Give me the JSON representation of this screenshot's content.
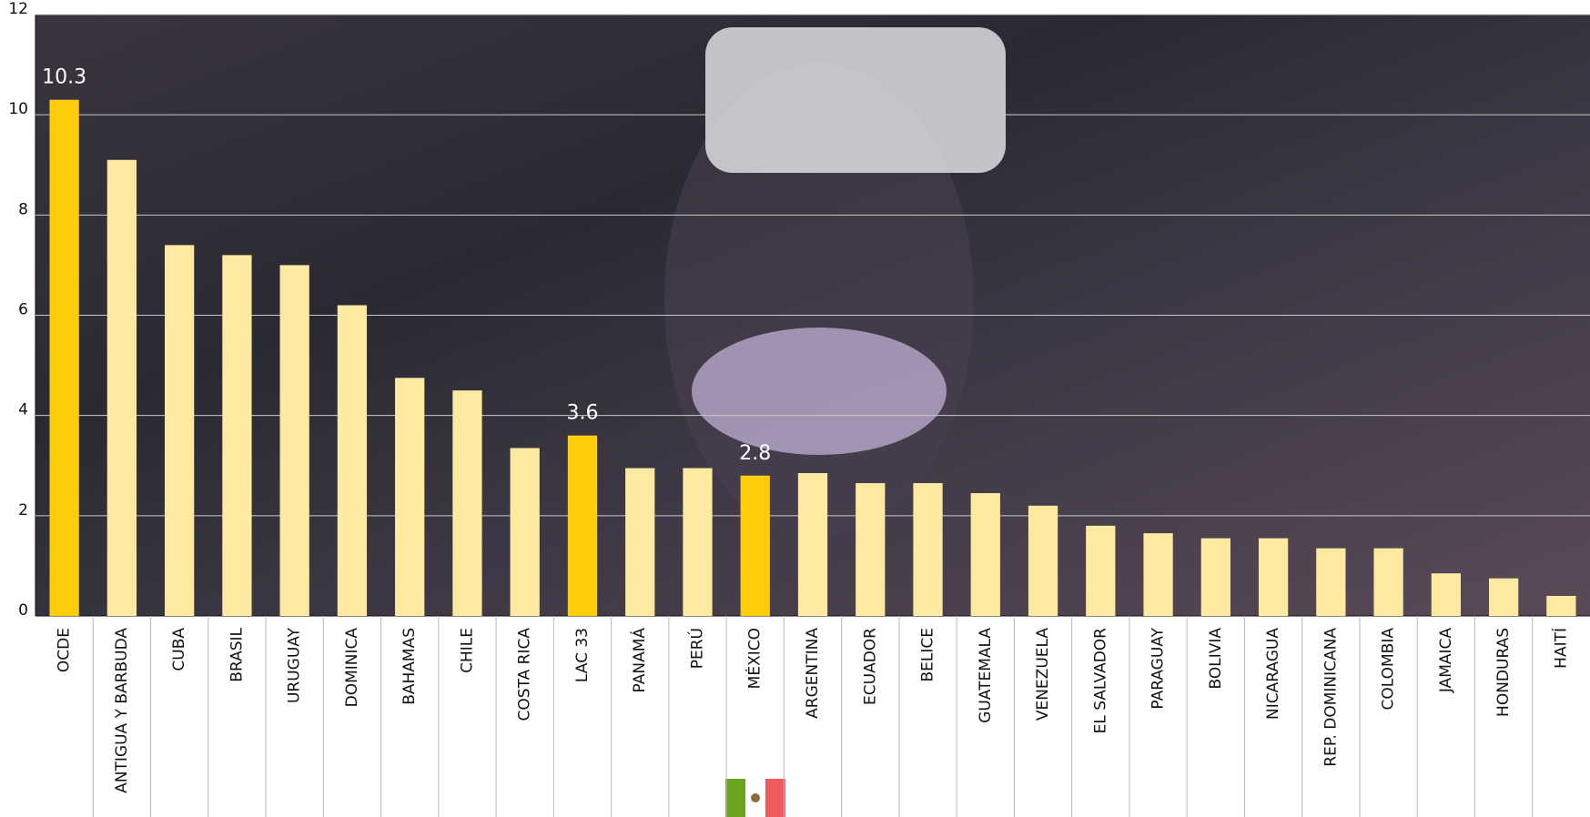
{
  "chart_data": {
    "type": "bar",
    "categories": [
      "OCDE",
      "ANTIGUA Y BARBUDA",
      "CUBA",
      "BRASIL",
      "URUGUAY",
      "DOMINICA",
      "BAHAMAS",
      "CHILE",
      "COSTA RICA",
      "LAC 33",
      "PANAMÁ",
      "PERÚ",
      "MÉXICO",
      "ARGENTINA",
      "ECUADOR",
      "BELICE",
      "GUATEMALA",
      "VENEZUELA",
      "EL SALVADOR",
      "PARAGUAY",
      "BOLIVIA",
      "NICARAGUA",
      "REP. DOMINICANA",
      "COLOMBIA",
      "JAMAICA",
      "HONDURAS",
      "HAITÍ"
    ],
    "values": [
      10.3,
      9.1,
      7.4,
      7.2,
      7.0,
      6.2,
      4.75,
      4.5,
      3.35,
      3.6,
      2.95,
      2.95,
      2.8,
      2.85,
      2.65,
      2.65,
      2.45,
      2.2,
      1.8,
      1.65,
      1.55,
      1.55,
      1.35,
      1.35,
      0.85,
      0.75,
      0.4
    ],
    "colors": [
      "#ffcc0a",
      "#fde9a0",
      "#fde9a0",
      "#fde9a0",
      "#fde9a0",
      "#fde9a0",
      "#fde9a0",
      "#fde9a0",
      "#fde9a0",
      "#ffcc0a",
      "#fde9a0",
      "#fde9a0",
      "#ffcc0a",
      "#fde9a0",
      "#fde9a0",
      "#fde9a0",
      "#fde9a0",
      "#fde9a0",
      "#fde9a0",
      "#fde9a0",
      "#fde9a0",
      "#fde9a0",
      "#fde9a0",
      "#fde9a0",
      "#fde9a0",
      "#fde9a0",
      "#fde9a0"
    ],
    "highlight_color": "#ffcc0a",
    "ylim": [
      0,
      12
    ],
    "yticks": [
      0,
      2,
      4,
      6,
      8,
      10,
      12
    ],
    "grid": true
  }
}
